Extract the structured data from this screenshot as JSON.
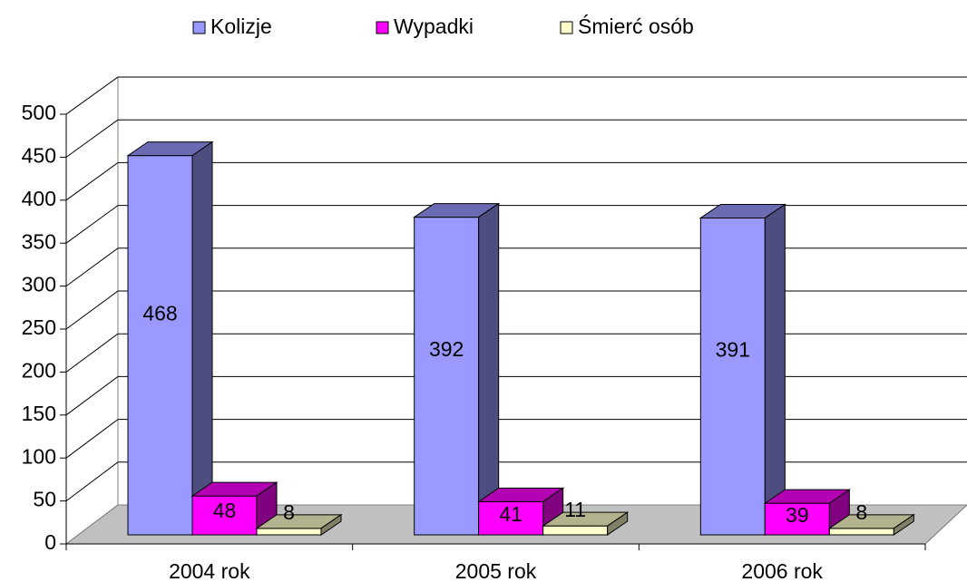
{
  "chart_data": {
    "type": "bar3d",
    "categories": [
      "2004 rok",
      "2005 rok",
      "2006 rok"
    ],
    "series": [
      {
        "name": "Kolizje",
        "color": "#9999ff",
        "values": [
          468,
          392,
          391
        ]
      },
      {
        "name": "Wypadki",
        "color": "#ff00ff",
        "values": [
          48,
          41,
          39
        ]
      },
      {
        "name": "Śmierć osób",
        "color": "#ffffcc",
        "values": [
          8,
          11,
          8
        ]
      }
    ],
    "ylim": [
      0,
      500
    ],
    "yticks": [
      0,
      50,
      100,
      150,
      200,
      250,
      300,
      350,
      400,
      450,
      500
    ],
    "grid": true,
    "legend": "top",
    "floor_color": "#c0c0c0"
  }
}
